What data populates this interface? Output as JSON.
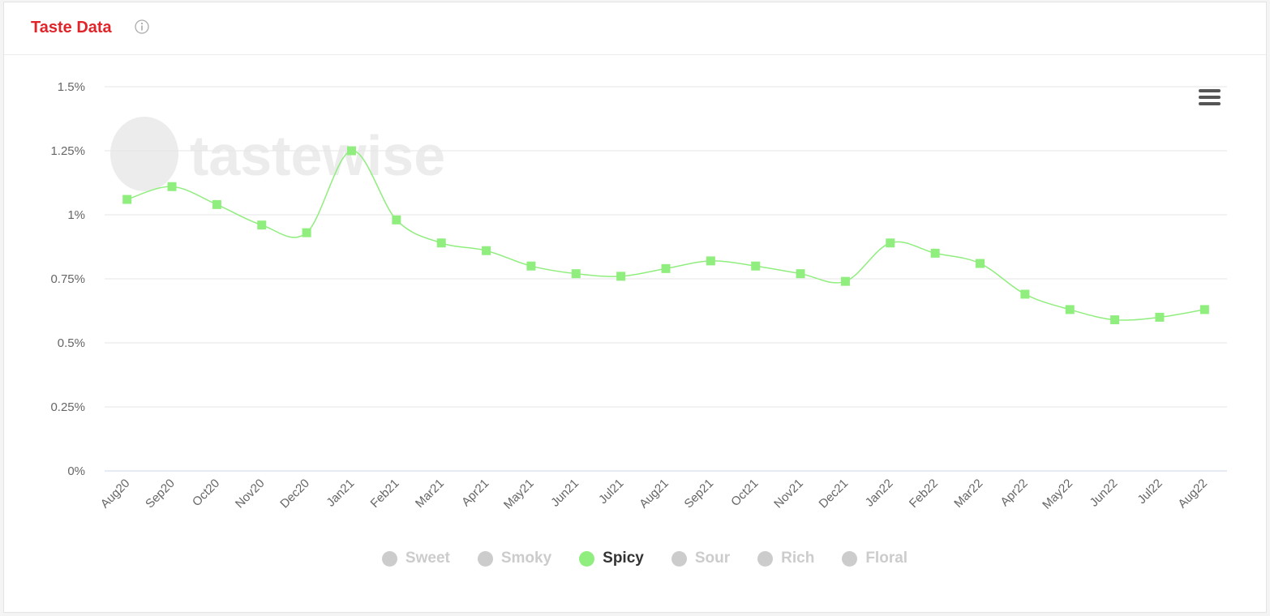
{
  "header": {
    "title": "Taste Data"
  },
  "colors": {
    "title": "#e0252a",
    "series": "#90ee7e",
    "inactive": "#cccccc",
    "axis": "#ccd6eb",
    "grid": "#e6e6e6"
  },
  "icons": {
    "info": "info-icon",
    "menu": "hamburger-menu-icon"
  },
  "watermark": {
    "text": "tastewise"
  },
  "legend": [
    {
      "label": "Sweet",
      "active": false
    },
    {
      "label": "Smoky",
      "active": false
    },
    {
      "label": "Spicy",
      "active": true
    },
    {
      "label": "Sour",
      "active": false
    },
    {
      "label": "Rich",
      "active": false
    },
    {
      "label": "Floral",
      "active": false
    }
  ],
  "chart_data": {
    "type": "line",
    "categories": [
      "Aug20",
      "Sep20",
      "Oct20",
      "Nov20",
      "Dec20",
      "Jan21",
      "Feb21",
      "Mar21",
      "Apr21",
      "May21",
      "Jun21",
      "Jul21",
      "Aug21",
      "Sep21",
      "Oct21",
      "Nov21",
      "Dec21",
      "Jan22",
      "Feb22",
      "Mar22",
      "Apr22",
      "May22",
      "Jun22",
      "Jul22",
      "Aug22"
    ],
    "series": [
      {
        "name": "Spicy",
        "color": "#90ee7e",
        "values": [
          1.06,
          1.11,
          1.04,
          0.96,
          0.93,
          1.25,
          0.98,
          0.89,
          0.86,
          0.8,
          0.77,
          0.76,
          0.79,
          0.82,
          0.8,
          0.77,
          0.74,
          0.89,
          0.85,
          0.81,
          0.69,
          0.63,
          0.59,
          0.6,
          0.63
        ]
      }
    ],
    "ylim": [
      0,
      1.5
    ],
    "yticks": [
      "0%",
      "0.25%",
      "0.5%",
      "0.75%",
      "1%",
      "1.25%",
      "1.5%"
    ],
    "ytick_values": [
      0,
      0.25,
      0.5,
      0.75,
      1,
      1.25,
      1.5
    ],
    "grid": true,
    "legend_position": "bottom"
  }
}
